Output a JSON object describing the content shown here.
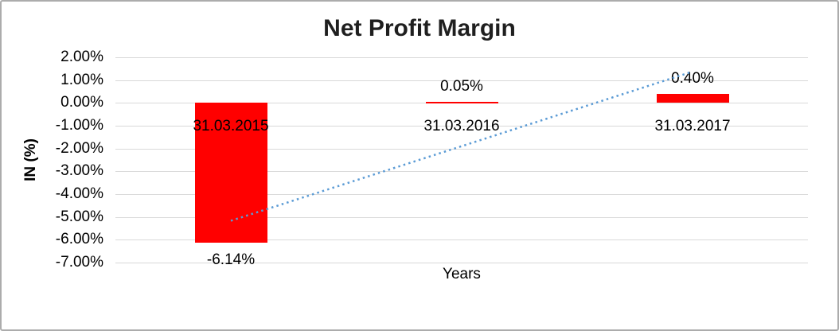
{
  "chart_data": {
    "type": "bar",
    "title": "Net Profit Margin",
    "xlabel": "Years",
    "ylabel": "IN (%)",
    "categories": [
      "31.03.2015",
      "31.03.2016",
      "31.03.2017"
    ],
    "series": [
      {
        "name": "Net Profit Margin",
        "values": [
          -6.14,
          0.05,
          0.4
        ]
      }
    ],
    "data_labels": [
      "-6.14%",
      "0.05%",
      "0.40%"
    ],
    "y_axis": {
      "tick_labels": [
        "2.00%",
        "1.00%",
        "0.00%",
        "-1.00%",
        "-2.00%",
        "-3.00%",
        "-4.00%",
        "-5.00%",
        "-6.00%",
        "-7.00%"
      ],
      "tick_values": [
        2,
        1,
        0,
        -1,
        -2,
        -3,
        -4,
        -5,
        -6,
        -7
      ],
      "min": -7,
      "max": 2
    },
    "trendline": {
      "type": "linear",
      "style": "dotted",
      "color": "#5B9BD5"
    },
    "grid": true,
    "legend": false,
    "colors": {
      "bar": "#FF0000",
      "gridline": "#D9D9D9",
      "text": "#000000",
      "title": "#1F1F1F",
      "background": "#FFFFFF",
      "frame_border": "#ACACAC"
    }
  }
}
